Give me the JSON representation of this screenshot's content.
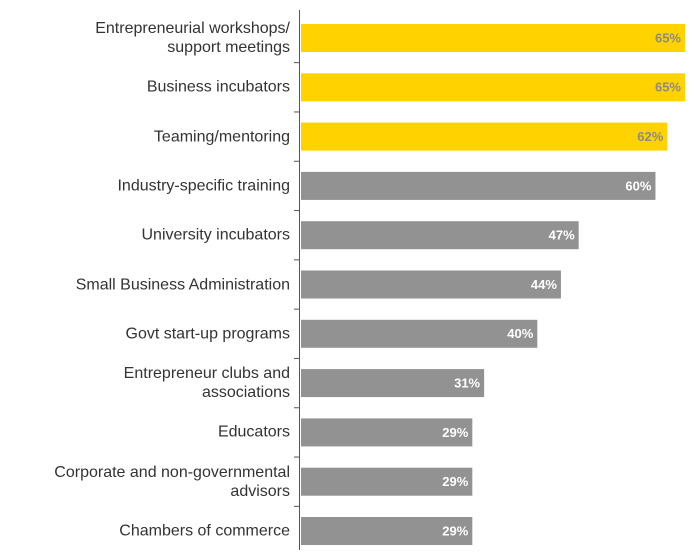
{
  "chart_data": {
    "type": "barh",
    "categories": [
      "Entrepreneurial workshops/\nsupport meetings",
      "Business incubators",
      "Teaming/mentoring",
      "Industry-specific training",
      "University incubators",
      "Small Business Administration",
      "Govt start-up programs",
      "Entrepreneur clubs and\nassociations",
      "Educators",
      "Corporate and non-governmental\nadvisors",
      "Chambers of commerce"
    ],
    "values": [
      65,
      65,
      62,
      60,
      47,
      44,
      40,
      31,
      29,
      29,
      29
    ],
    "value_labels": [
      "65%",
      "65%",
      "62%",
      "60%",
      "47%",
      "44%",
      "40%",
      "31%",
      "29%",
      "29%",
      "29%"
    ],
    "colors": [
      "#ffd200",
      "#ffd200",
      "#ffd200",
      "#929292",
      "#929292",
      "#929292",
      "#929292",
      "#929292",
      "#929292",
      "#929292",
      "#929292"
    ],
    "xlim": [
      0,
      65
    ]
  }
}
